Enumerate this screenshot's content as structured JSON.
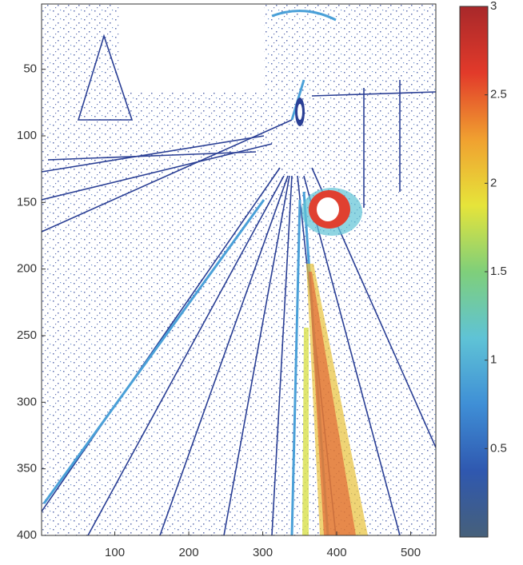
{
  "chart_data": {
    "type": "image",
    "xlim": [
      1,
      534
    ],
    "xticks": [
      100,
      200,
      300,
      400,
      500
    ],
    "ylim": [
      400,
      1
    ],
    "yticks": [
      50,
      100,
      150,
      200,
      250,
      300,
      350,
      400
    ],
    "colorbar": {
      "lim": [
        0,
        3
      ],
      "ticks": [
        0.5,
        1,
        1.5,
        2,
        2.5,
        3
      ],
      "colors": [
        "#46607a",
        "#2f58b0",
        "#3f8fd6",
        "#5fc3d6",
        "#7fcf7a",
        "#e6e43a",
        "#f0a030",
        "#e23a2a",
        "#a8282a"
      ]
    }
  }
}
